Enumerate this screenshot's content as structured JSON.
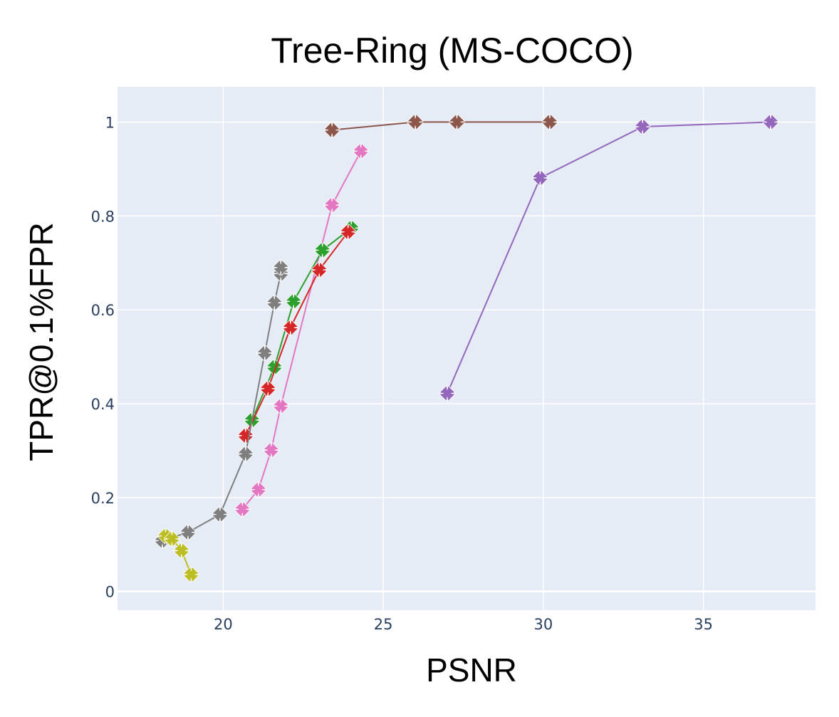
{
  "chart_data": {
    "type": "scatter",
    "title": "Tree-Ring (MS-COCO)",
    "xlabel": "PSNR",
    "ylabel": "TPR@0.1%FPR",
    "xlim": [
      16.7,
      38.5
    ],
    "ylim": [
      -0.04,
      1.075
    ],
    "xticks": [
      20,
      25,
      30,
      35
    ],
    "yticks": [
      0,
      0.2,
      0.4,
      0.6,
      0.8,
      1
    ],
    "ytick_labels": [
      "0",
      "0.2",
      "0.4",
      "0.6",
      "0.8",
      "1"
    ],
    "grid": true,
    "marker": "x-thick",
    "mode": "lines+markers",
    "series": [
      {
        "color": "#8c564b",
        "x": [
          23.4,
          26.0,
          27.3,
          30.2
        ],
        "y": [
          0.983,
          1.0,
          1.0,
          1.0
        ]
      },
      {
        "color": "#9467bd",
        "x": [
          27.0,
          29.9,
          33.1,
          37.1
        ],
        "y": [
          0.422,
          0.881,
          0.99,
          1.0
        ]
      },
      {
        "color": "#e377c2",
        "x": [
          20.6,
          21.1,
          21.5,
          21.8,
          23.4,
          24.3
        ],
        "y": [
          0.175,
          0.217,
          0.301,
          0.395,
          0.823,
          0.938
        ]
      },
      {
        "color": "#2ca02c",
        "x": [
          20.9,
          21.6,
          22.2,
          23.1,
          24.0
        ],
        "y": [
          0.365,
          0.478,
          0.618,
          0.727,
          0.774
        ]
      },
      {
        "color": "#d62728",
        "x": [
          20.7,
          21.4,
          22.1,
          23.0,
          23.9
        ],
        "y": [
          0.332,
          0.432,
          0.562,
          0.685,
          0.766
        ]
      },
      {
        "color": "#7f7f7f",
        "x": [
          18.1,
          18.9,
          19.9,
          20.7,
          21.3,
          21.6,
          21.8,
          21.8
        ],
        "y": [
          0.108,
          0.126,
          0.164,
          0.293,
          0.508,
          0.615,
          0.677,
          0.69
        ]
      },
      {
        "color": "#bcbd22",
        "x": [
          18.2,
          18.4,
          18.7,
          19.0
        ],
        "y": [
          0.118,
          0.112,
          0.087,
          0.036
        ]
      }
    ]
  }
}
